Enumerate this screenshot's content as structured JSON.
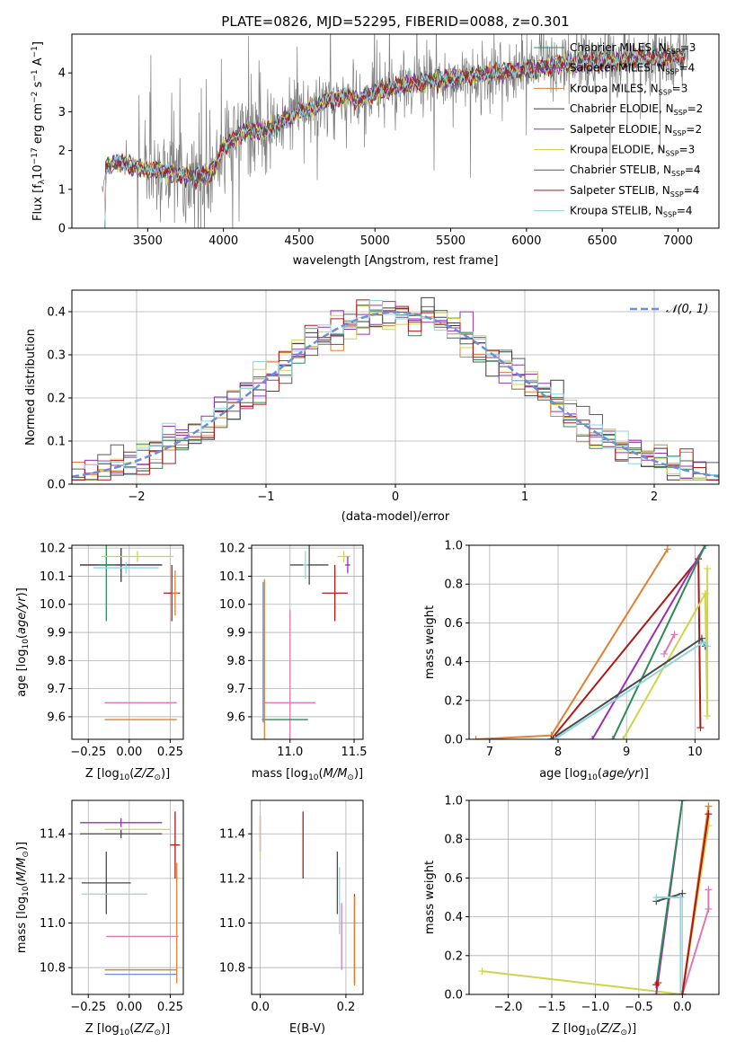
{
  "figure_title": "PLATE=0826, MJD=52295, FIBERID=0088, z=0.301",
  "colors": [
    "#808080",
    "#9b30b4",
    "#e08030",
    "#3a3a3a",
    "#8e34b5",
    "#ccd64a",
    "#5a5a5a",
    "#b01818",
    "#8ed6e0"
  ],
  "chart_data": [
    {
      "id": "spectrum",
      "type": "line",
      "title": "PLATE=0826, MJD=52295, FIBERID=0088, z=0.301",
      "xlabel": "wavelength [Angstrom, rest frame]",
      "ylabel": "Flux [f_λ 10^-17 erg cm^-2 s^-1 A^-1]",
      "xlim": [
        3000,
        7270
      ],
      "ylim": [
        0,
        5
      ],
      "xticks": [
        3500,
        4000,
        4500,
        5000,
        5500,
        6000,
        6500,
        7000
      ],
      "yticks": [
        0,
        1,
        2,
        3,
        4
      ],
      "grid": false,
      "legend_position": "top-right",
      "legend": [
        {
          "text": "Chabrier MILES, N",
          "sub": "SSP",
          "tail": "=3",
          "color": "#2e8b57"
        },
        {
          "text": "Salpeter MILES, N",
          "sub": "SSP",
          "tail": "=4",
          "color": "#9b30b4"
        },
        {
          "text": "Kroupa MILES, N",
          "sub": "SSP",
          "tail": "=3",
          "color": "#e08030"
        },
        {
          "text": "Chabrier ELODIE, N",
          "sub": "SSP",
          "tail": "=2",
          "color": "#3a3a3a"
        },
        {
          "text": "Salpeter ELODIE, N",
          "sub": "SSP",
          "tail": "=2",
          "color": "#8e34b5"
        },
        {
          "text": "Kroupa ELODIE, N",
          "sub": "SSP",
          "tail": "=3",
          "color": "#ccd64a"
        },
        {
          "text": "Chabrier STELIB, N",
          "sub": "SSP",
          "tail": "=4",
          "color": "#5a5a5a"
        },
        {
          "text": "Salpeter STELIB, N",
          "sub": "SSP",
          "tail": "=4",
          "color": "#b01818"
        },
        {
          "text": "Kroupa STELIB, N",
          "sub": "SSP",
          "tail": "=4",
          "color": "#8ed6e0"
        }
      ],
      "model_continuum": {
        "x": [
          3200,
          3230,
          3300,
          3400,
          3500,
          3600,
          3700,
          3800,
          3900,
          3950,
          4000,
          4100,
          4200,
          4300,
          4400,
          4500,
          4600,
          4700,
          4800,
          4900,
          5000,
          5200,
          5400,
          5600,
          5800,
          6000,
          6200,
          6400,
          6600,
          6800,
          7000,
          7050
        ],
        "y": [
          0.9,
          1.6,
          1.7,
          1.6,
          1.5,
          1.5,
          1.4,
          1.3,
          1.4,
          1.6,
          2.1,
          2.4,
          2.5,
          2.5,
          2.8,
          3.0,
          3.1,
          3.3,
          3.4,
          3.3,
          3.5,
          3.7,
          3.8,
          3.9,
          4.0,
          4.1,
          4.2,
          4.3,
          4.3,
          4.4,
          4.4,
          4.4
        ]
      },
      "data_spectrum": {
        "xrange": [
          3200,
          7070
        ],
        "noise_min_flux": 0.2,
        "noise_max_flux": 5.0
      }
    },
    {
      "id": "residuals",
      "type": "line",
      "xlabel": "(data-model)/error",
      "ylabel": "Normed distribution",
      "xlim": [
        -2.5,
        2.5
      ],
      "ylim": [
        0,
        0.45
      ],
      "xticks": [
        -2,
        -1,
        0,
        1,
        2
      ],
      "yticks": [
        0.0,
        0.1,
        0.2,
        0.3,
        0.4
      ],
      "grid": true,
      "legend_position": "top-right",
      "legend_label": "𝒩(0, 1)",
      "gaussian": {
        "mean": 0,
        "sigma": 1,
        "color": "#6a8fd8"
      }
    },
    {
      "id": "age-vs-Z",
      "type": "errorbar",
      "xlabel": "Z [log10(Z/Z⊙)]",
      "ylabel": "age  [log10(age/yr)]",
      "xlim": [
        -0.35,
        0.33
      ],
      "ylim": [
        9.52,
        10.21
      ],
      "xticks": [
        -0.25,
        0.0,
        0.25
      ],
      "yticks": [
        9.6,
        9.7,
        9.8,
        9.9,
        10.0,
        10.1,
        10.2
      ],
      "grid": true,
      "points": [
        {
          "x": -0.05,
          "xerr": 0.25,
          "y": 10.14,
          "yerr": 0.06,
          "color": "#9b30b4"
        },
        {
          "x": -0.05,
          "xerr": 0.25,
          "y": 10.14,
          "yerr": 0.06,
          "color": "#4a4a4a"
        },
        {
          "x": -0.14,
          "xerr": 0.05,
          "y": 10.14,
          "yerr": 0.2,
          "color": "#2e8b57"
        },
        {
          "x": 0.05,
          "xerr": 0.22,
          "y": 10.17,
          "yerr": 0.02,
          "color": "#ccd64a"
        },
        {
          "x": -0.02,
          "xerr": 0.2,
          "y": 10.13,
          "yerr": 0.02,
          "color": "#8ed6e0"
        },
        {
          "x": 0.26,
          "xerr": 0.05,
          "y": 10.04,
          "yerr": 0.1,
          "color": "#b01818"
        },
        {
          "x": 0.28,
          "xerr": 0.02,
          "y": 10.04,
          "yerr": 0.08,
          "color": "#e08030"
        },
        {
          "x": 0.07,
          "xerr": 0.22,
          "y": 9.65,
          "yerr": 0.0,
          "color": "#e078b0"
        },
        {
          "x": 0.07,
          "xerr": 0.22,
          "y": 9.59,
          "yerr": 0.0,
          "color": "#e08030"
        },
        {
          "x": 0.24,
          "xerr": 0.0,
          "y": 9.6,
          "yerr": 0.0,
          "color": "#ccd64a"
        }
      ]
    },
    {
      "id": "age-vs-mass",
      "type": "errorbar",
      "xlabel": "mass [log10(M/M⊙)]",
      "ylabel": "",
      "xlim": [
        10.7,
        11.57
      ],
      "ylim": [
        9.52,
        10.21
      ],
      "xticks": [
        11.0,
        11.5
      ],
      "yticks": [
        9.6,
        9.7,
        9.8,
        9.9,
        10.0,
        10.1,
        10.2
      ],
      "grid": true,
      "points": [
        {
          "x": 11.15,
          "xerr": 0.15,
          "y": 10.14,
          "yerr": 0.07,
          "color": "#4a4a4a"
        },
        {
          "x": 11.12,
          "xerr": 0.02,
          "y": 10.14,
          "yerr": 0.05,
          "color": "#8ed6e0"
        },
        {
          "x": 11.42,
          "xerr": 0.05,
          "y": 10.17,
          "yerr": 0.02,
          "color": "#ccd64a"
        },
        {
          "x": 11.45,
          "xerr": 0.02,
          "y": 10.14,
          "yerr": 0.03,
          "color": "#9b30b4"
        },
        {
          "x": 11.35,
          "xerr": 0.1,
          "y": 10.04,
          "yerr": 0.1,
          "color": "#b01818"
        },
        {
          "x": 11.0,
          "xerr": 0.2,
          "y": 9.65,
          "yerr": 0.33,
          "color": "#e078b0"
        },
        {
          "x": 10.96,
          "xerr": 0.18,
          "y": 9.59,
          "yerr": 0.0,
          "color": "#2e8b57"
        },
        {
          "x": 10.8,
          "xerr": 0.0,
          "y": 9.8,
          "yerr": 0.29,
          "color": "#e08030"
        },
        {
          "x": 10.79,
          "xerr": 0.0,
          "y": 9.83,
          "yerr": 0.25,
          "color": "#6a8fd8"
        }
      ]
    },
    {
      "id": "weight-vs-age",
      "type": "line",
      "xlabel": "age  [log10(age/yr)]",
      "ylabel": "mass weight",
      "xlim": [
        6.7,
        10.35
      ],
      "ylim": [
        0,
        1.0
      ],
      "xticks": [
        7,
        8,
        9,
        10
      ],
      "yticks": [
        0.0,
        0.2,
        0.4,
        0.6,
        0.8,
        1.0
      ],
      "grid": true,
      "series": [
        {
          "color": "#e08030",
          "x": [
            6.8,
            7.9,
            9.6
          ],
          "y": [
            0.0,
            0.02,
            0.98
          ]
        },
        {
          "color": "#b01818",
          "x": [
            7.9,
            10.05,
            10.08
          ],
          "y": [
            0.0,
            0.93,
            0.06
          ]
        },
        {
          "color": "#9b30b4",
          "x": [
            8.5,
            10.15
          ],
          "y": [
            0.0,
            1.0
          ]
        },
        {
          "color": "#2e8b57",
          "x": [
            8.8,
            10.15
          ],
          "y": [
            0.0,
            1.0
          ]
        },
        {
          "color": "#ccd64a",
          "x": [
            8.95,
            10.15,
            10.18,
            10.18
          ],
          "y": [
            0.0,
            0.75,
            0.12,
            0.88
          ]
        },
        {
          "color": "#4a4a4a",
          "x": [
            7.9,
            10.1,
            10.15
          ],
          "y": [
            0.0,
            0.52,
            0.48
          ]
        },
        {
          "color": "#8ed6e0",
          "x": [
            7.95,
            10.12,
            10.18
          ],
          "y": [
            0.0,
            0.5,
            0.48
          ]
        },
        {
          "color": "#e078b0",
          "x": [
            9.55,
            9.7
          ],
          "y": [
            0.44,
            0.54
          ]
        }
      ]
    },
    {
      "id": "mass-vs-Z",
      "type": "errorbar",
      "xlabel": "Z [log10(Z/Z⊙)]",
      "ylabel": "mass [log10(M/M⊙)]",
      "xlim": [
        -0.35,
        0.33
      ],
      "ylim": [
        10.68,
        11.55
      ],
      "xticks": [
        -0.25,
        0.0,
        0.25
      ],
      "yticks": [
        10.8,
        11.0,
        11.2,
        11.4
      ],
      "grid": true,
      "points": [
        {
          "x": -0.05,
          "xerr": 0.25,
          "y": 11.45,
          "yerr": 0.02,
          "color": "#9b30b4"
        },
        {
          "x": -0.05,
          "xerr": 0.25,
          "y": 11.4,
          "yerr": 0.02,
          "color": "#4a4a4a"
        },
        {
          "x": 0.05,
          "xerr": 0.2,
          "y": 11.42,
          "yerr": 0.0,
          "color": "#ccd64a"
        },
        {
          "x": -0.14,
          "xerr": 0.15,
          "y": 11.18,
          "yerr": 0.14,
          "color": "#4a4a4a"
        },
        {
          "x": -0.09,
          "xerr": 0.2,
          "y": 11.13,
          "yerr": 0.0,
          "color": "#8ed6e0"
        },
        {
          "x": 0.28,
          "xerr": 0.03,
          "y": 11.35,
          "yerr": 0.15,
          "color": "#b01818"
        },
        {
          "x": 0.29,
          "xerr": 0.0,
          "y": 11.0,
          "yerr": 0.27,
          "color": "#e08030"
        },
        {
          "x": 0.08,
          "xerr": 0.22,
          "y": 10.94,
          "yerr": 0.0,
          "color": "#e078b0"
        },
        {
          "x": 0.07,
          "xerr": 0.22,
          "y": 10.79,
          "yerr": 0.0,
          "color": "#e08030"
        },
        {
          "x": 0.07,
          "xerr": 0.22,
          "y": 10.77,
          "yerr": 0.0,
          "color": "#6a8fd8"
        }
      ]
    },
    {
      "id": "mass-vs-EBV",
      "type": "errorbar",
      "xlabel": "E(B-V)",
      "ylabel": "",
      "xlim": [
        -0.02,
        0.24
      ],
      "ylim": [
        10.68,
        11.55
      ],
      "xticks": [
        0.0,
        0.2
      ],
      "yticks": [
        10.8,
        11.0,
        11.2,
        11.4
      ],
      "grid": true,
      "points": [
        {
          "x": 0.0,
          "xerr": 0.0,
          "y": 11.4,
          "yerr": 0.08,
          "color": "#9b30b4"
        },
        {
          "x": 0.0,
          "xerr": 0.0,
          "y": 11.38,
          "yerr": 0.1,
          "color": "#ccd64a"
        },
        {
          "x": 0.1,
          "xerr": 0.0,
          "y": 11.35,
          "yerr": 0.15,
          "color": "#b01818"
        },
        {
          "x": 0.18,
          "xerr": 0.0,
          "y": 11.18,
          "yerr": 0.14,
          "color": "#4a4a4a"
        },
        {
          "x": 0.185,
          "xerr": 0.0,
          "y": 11.1,
          "yerr": 0.15,
          "color": "#8ed6e0"
        },
        {
          "x": 0.19,
          "xerr": 0.0,
          "y": 10.94,
          "yerr": 0.15,
          "color": "#e078b0"
        },
        {
          "x": 0.22,
          "xerr": 0.0,
          "y": 10.93,
          "yerr": 0.2,
          "color": "#4a4a4a"
        },
        {
          "x": 0.22,
          "xerr": 0.0,
          "y": 10.92,
          "yerr": 0.2,
          "color": "#e08030"
        }
      ]
    },
    {
      "id": "weight-vs-Z",
      "type": "line",
      "xlabel": "Z [log10(Z/Z⊙)]",
      "ylabel": "mass weight",
      "xlim": [
        -2.45,
        0.42
      ],
      "ylim": [
        0,
        1.0
      ],
      "xticks": [
        -2.0,
        -1.5,
        -1.0,
        -0.5,
        0.0
      ],
      "yticks": [
        0.0,
        0.2,
        0.4,
        0.6,
        0.8,
        1.0
      ],
      "grid": true,
      "series": [
        {
          "color": "#ccd64a",
          "x": [
            -2.3,
            0.0,
            0.3,
            0.3
          ],
          "y": [
            0.12,
            0.0,
            0.87,
            0.97
          ]
        },
        {
          "color": "#9b30b4",
          "x": [
            -0.3,
            0.0
          ],
          "y": [
            0.0,
            1.0
          ]
        },
        {
          "color": "#2e8b57",
          "x": [
            -0.3,
            0.0
          ],
          "y": [
            0.05,
            1.0
          ]
        },
        {
          "color": "#b01818",
          "x": [
            -0.3,
            -0.28
          ],
          "y": [
            0.05,
            0.06
          ]
        },
        {
          "color": "#4a4a4a",
          "x": [
            -0.3,
            0.0
          ],
          "y": [
            0.48,
            0.52
          ]
        },
        {
          "color": "#8ed6e0",
          "x": [
            -0.3,
            -0.02,
            -0.02
          ],
          "y": [
            0.5,
            0.5,
            0.0
          ]
        },
        {
          "color": "#e078b0",
          "x": [
            0.0,
            0.3,
            0.3
          ],
          "y": [
            0.0,
            0.44,
            0.54
          ]
        },
        {
          "color": "#e08030",
          "x": [
            0.0,
            0.3
          ],
          "y": [
            0.0,
            0.97
          ]
        },
        {
          "color": "#b01818",
          "x": [
            0.0,
            0.3
          ],
          "y": [
            0.0,
            0.93
          ]
        }
      ]
    }
  ]
}
